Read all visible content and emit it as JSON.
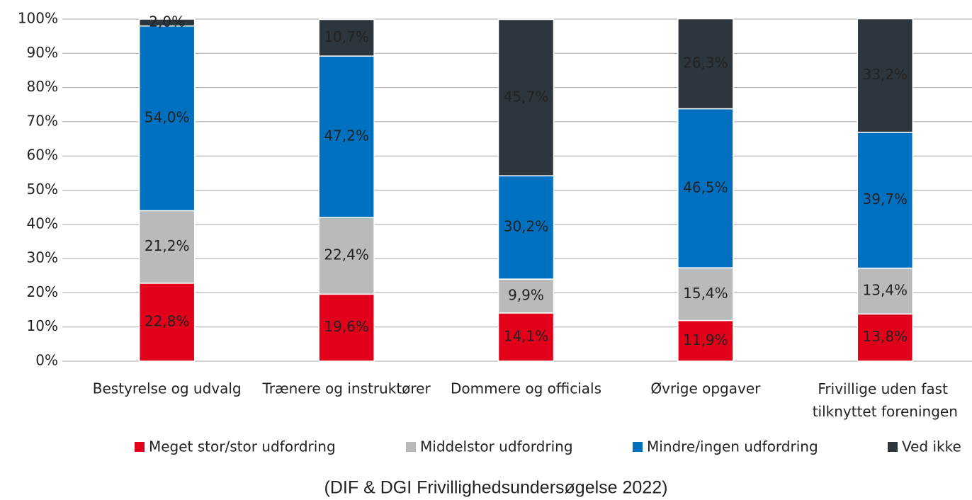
{
  "chart_data": {
    "type": "stacked_bar",
    "categories": [
      "Bestyrelse og udvalg",
      "Trænere og instruktører",
      "Dommere og officials",
      "Øvrige opgaver",
      "Frivillige uden fast tilknyttet foreningen"
    ],
    "series": [
      {
        "name": "Meget stor/stor udfordring",
        "color": "#e2001a",
        "values": [
          22.8,
          19.6,
          14.1,
          11.9,
          13.8
        ],
        "value_labels": [
          "22,8%",
          "19,6%",
          "14,1%",
          "11,9%",
          "13,8%"
        ]
      },
      {
        "name": "Middelstor udfordring",
        "color": "#b8babc",
        "values": [
          21.2,
          22.4,
          9.9,
          15.4,
          13.4
        ],
        "value_labels": [
          "21,2%",
          "22,4%",
          "9,9%",
          "15,4%",
          "13,4%"
        ]
      },
      {
        "name": "Mindre/ingen udfordring",
        "color": "#0070c0",
        "values": [
          54.0,
          47.2,
          30.2,
          46.5,
          39.7
        ],
        "value_labels": [
          "54,0%",
          "47,2%",
          "30,2%",
          "46,5%",
          "39,7%"
        ]
      },
      {
        "name": "Ved ikke",
        "color": "#2d363c",
        "values": [
          2.0,
          10.7,
          45.7,
          26.3,
          33.2
        ],
        "value_labels": [
          "2,0%",
          "10,7%",
          "45,7%",
          "26,3%",
          "33,2%"
        ]
      }
    ],
    "ylim": [
      0,
      100
    ],
    "yticks": [
      {
        "value": 0,
        "label": "0%"
      },
      {
        "value": 10,
        "label": "10%"
      },
      {
        "value": 20,
        "label": "20%"
      },
      {
        "value": 30,
        "label": "30%"
      },
      {
        "value": 40,
        "label": "40%"
      },
      {
        "value": 50,
        "label": "50%"
      },
      {
        "value": 60,
        "label": "60%"
      },
      {
        "value": 70,
        "label": "70%"
      },
      {
        "value": 80,
        "label": "80%"
      },
      {
        "value": 90,
        "label": "90%"
      },
      {
        "value": 100,
        "label": "100%"
      }
    ],
    "grid": true,
    "legend": "bottom",
    "source": "(DIF & DGI Frivillighedsundersøgelse 2022)"
  }
}
